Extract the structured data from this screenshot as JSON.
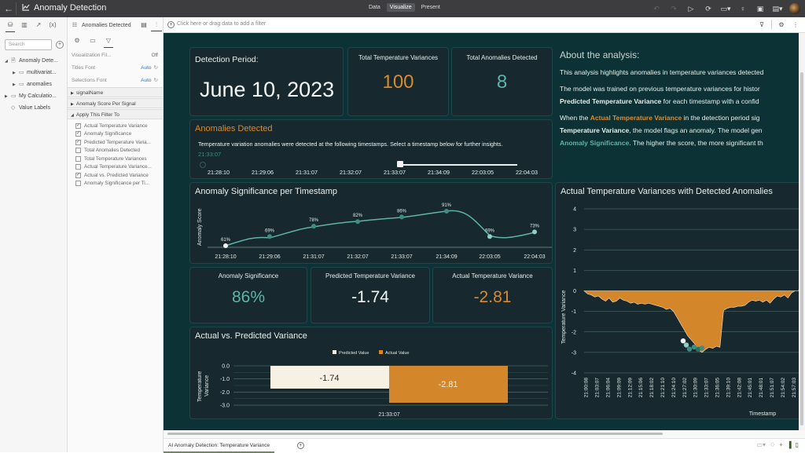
{
  "topbar": {
    "title": "Anomaly Detection",
    "modes": [
      "Data",
      "Visualize",
      "Present"
    ],
    "active_mode": "Visualize",
    "icons": [
      "undo-icon",
      "redo-icon",
      "preview-play-icon",
      "refresh-data-icon",
      "canvas-layout-icon",
      "insights-bulb-icon",
      "present-icon",
      "save-icon",
      "user-avatar"
    ]
  },
  "left_panel": {
    "tabs": [
      "data-icon",
      "visualizations-icon",
      "analytics-icon",
      "calculations-icon"
    ],
    "search_placeholder": "Search",
    "tree": [
      {
        "label": "Anomaly Dete...",
        "level": 0,
        "expanded": true,
        "icon": "dataset-icon"
      },
      {
        "label": "multivariat...",
        "level": 1,
        "expanded": false,
        "icon": "folder-icon"
      },
      {
        "label": "anomalies",
        "level": 1,
        "expanded": false,
        "icon": "folder-icon"
      },
      {
        "label": "My Calculatio...",
        "level": 0,
        "expanded": false,
        "icon": "folder-icon"
      },
      {
        "label": "Value Labels",
        "level": 0,
        "expanded": null,
        "icon": "tag-icon"
      }
    ]
  },
  "props_panel": {
    "header": "Anomalies Detected",
    "rows": [
      {
        "label": "Visualization Fil...",
        "value": "Off"
      },
      {
        "label": "Titles Font",
        "value": "Auto"
      },
      {
        "label": "Selections Font",
        "value": "Auto"
      }
    ],
    "sections": [
      "signalName",
      "Anomaly Score Per Signal",
      "Apply This Filter To"
    ],
    "apply_filter_to": [
      {
        "label": "Actual Temperature Variance",
        "checked": true
      },
      {
        "label": "Anomaly Significance",
        "checked": true
      },
      {
        "label": "Predicted Temperature Varia...",
        "checked": true
      },
      {
        "label": "Total Anomalies Detected",
        "checked": false
      },
      {
        "label": "Total Temperature Variances",
        "checked": false
      },
      {
        "label": "Actual Temperature Variance...",
        "checked": false
      },
      {
        "label": "Actual vs. Predicted Variance",
        "checked": true
      },
      {
        "label": "Anomaly Significance per Ti...",
        "checked": false
      }
    ]
  },
  "filter_bar": {
    "placeholder": "Click here or drag data to add a filter"
  },
  "dashboard": {
    "detection_period": {
      "label": "Detection Period:",
      "value": "June 10, 2023"
    },
    "total_variances": {
      "label": "Total Temperature Variances",
      "value": "100"
    },
    "total_anomalies": {
      "label": "Total Anomalies Detected",
      "value": "8"
    },
    "anomalies_detected": {
      "title": "Anomalies Detected",
      "description": "Temperature variation anomalies were detected at the following timestamps. Select a timestamp below for further insights.",
      "selected": "21:33:07",
      "timestamps": [
        "21:28:10",
        "21:29:06",
        "21:31:07",
        "21:32:07",
        "21:33:07",
        "21:34:09",
        "22:03:05",
        "22:04:03"
      ]
    },
    "kpis": {
      "significance": {
        "label": "Anomaly Significance",
        "value": "86%"
      },
      "predicted": {
        "label": "Predicted Temperature Variance",
        "value": "-1.74"
      },
      "actual": {
        "label": "Actual Temperature Variance",
        "value": "-2.81"
      }
    },
    "about": {
      "title": "About the analysis:",
      "p1": "This analysis highlights anomalies in temperature variances detected",
      "p2a": "The model was trained on previous temperature variances for histor",
      "p2b_bold": "Predicted Temperature Variance",
      "p2c": " for each timestamp with a confid",
      "p3a": "When the ",
      "p3b_orange": "Actual Temperature Variance",
      "p3c": " in the detection period sig",
      "p3d_bold": "Temperature Variance",
      "p3e": ", the model flags an anomaly. The model gen",
      "p3f_teal": "Anomaly Significance",
      "p3g": ". The higher the score, the more significant th"
    }
  },
  "bottom": {
    "tab": "AI Anomaly Detection: Temperature Variance"
  },
  "colors": {
    "canvas_bg": "#0c3236",
    "card_bg": "#17292e",
    "orange": "#d4862a",
    "teal": "#5fb3a8",
    "cream": "#f7f1e3"
  },
  "chart_data": [
    {
      "type": "line",
      "title": "Anomaly Significance per Timestamp",
      "xlabel": "",
      "ylabel": "Anomaly Score",
      "categories": [
        "21:28:10",
        "21:29:06",
        "21:31:07",
        "21:32:07",
        "21:33:07",
        "21:34:09",
        "22:03:05",
        "22:04:03"
      ],
      "values": [
        61,
        69,
        78,
        82,
        86,
        91,
        69,
        73
      ],
      "labels": [
        "61%",
        "69%",
        "78%",
        "82%",
        "86%",
        "91%",
        "69%",
        "73%"
      ],
      "grid": false
    },
    {
      "type": "bar",
      "title": "Actual vs. Predicted Variance",
      "xlabel": "",
      "ylabel": "Temperature Variance",
      "categories": [
        "21:33:07"
      ],
      "series": [
        {
          "name": "Predicted Value",
          "values": [
            -1.74
          ],
          "color": "#f7f1e3"
        },
        {
          "name": "Actual Value",
          "values": [
            -2.81
          ],
          "color": "#d4862a"
        }
      ],
      "yticks": [
        "0.0",
        "-1.0",
        "-2.0",
        "-3.0"
      ],
      "ylim": [
        -3.0,
        0.0
      ],
      "legend_position": "top"
    },
    {
      "type": "area",
      "title": "Actual Temperature Variances with Detected Anomalies",
      "xlabel": "Timestamp",
      "ylabel": "Temperature Variance",
      "ylim": [
        -4,
        4
      ],
      "yticks": [
        4,
        3,
        2,
        1,
        0,
        -1,
        -2,
        -3,
        -4
      ],
      "xticks": [
        "21:00:08",
        "21:03:07",
        "21:06:04",
        "21:09:09",
        "21:12:09",
        "21:15:06",
        "21:18:02",
        "21:21:10",
        "21:24:10",
        "21:27:02",
        "21:30:09",
        "21:33:07",
        "21:36:05",
        "21:39:10",
        "21:42:08",
        "21:45:01",
        "21:48:01",
        "21:51:07",
        "21:54:02",
        "21:57:03",
        "22:00:03"
      ],
      "series": [
        {
          "name": "Actual Temperature Variance",
          "color": "#d4862a",
          "values": [
            0,
            -0.15,
            -0.2,
            -0.3,
            -0.25,
            -0.4,
            -0.5,
            -0.35,
            -0.55,
            -0.5,
            -0.35,
            -0.45,
            -0.5,
            -0.6,
            -0.55,
            -0.65,
            -0.6,
            -0.65,
            -0.6,
            -0.65,
            -0.7,
            -0.75,
            -0.8,
            -0.9,
            -0.85,
            -1.0,
            -1.3,
            -1.6,
            -1.9,
            -2.2,
            -2.4,
            -2.6,
            -2.9,
            -3.0,
            -2.85,
            -2.75,
            -2.8,
            -2.7,
            -2.75,
            -0.95,
            -0.85,
            -0.8,
            -0.8,
            -0.75,
            -0.75,
            -0.7,
            -0.55,
            -0.45,
            -0.5,
            -0.45,
            -0.55,
            -0.45,
            -0.6,
            -0.4,
            -0.25,
            -0.3,
            -0.2,
            -0.35,
            -0.1,
            0.0,
            0.0,
            1.3,
            2.2
          ]
        },
        {
          "name": "Detected Anomalies",
          "type": "scatter",
          "color": "#5fb3a8",
          "x": [
            "21:28:10",
            "21:29:06",
            "21:31:07",
            "21:32:07",
            "21:33:07",
            "21:34:09"
          ],
          "values": [
            -2.4,
            -2.6,
            -2.8,
            -2.7,
            -2.81,
            -2.75
          ]
        }
      ],
      "grid": true
    }
  ]
}
